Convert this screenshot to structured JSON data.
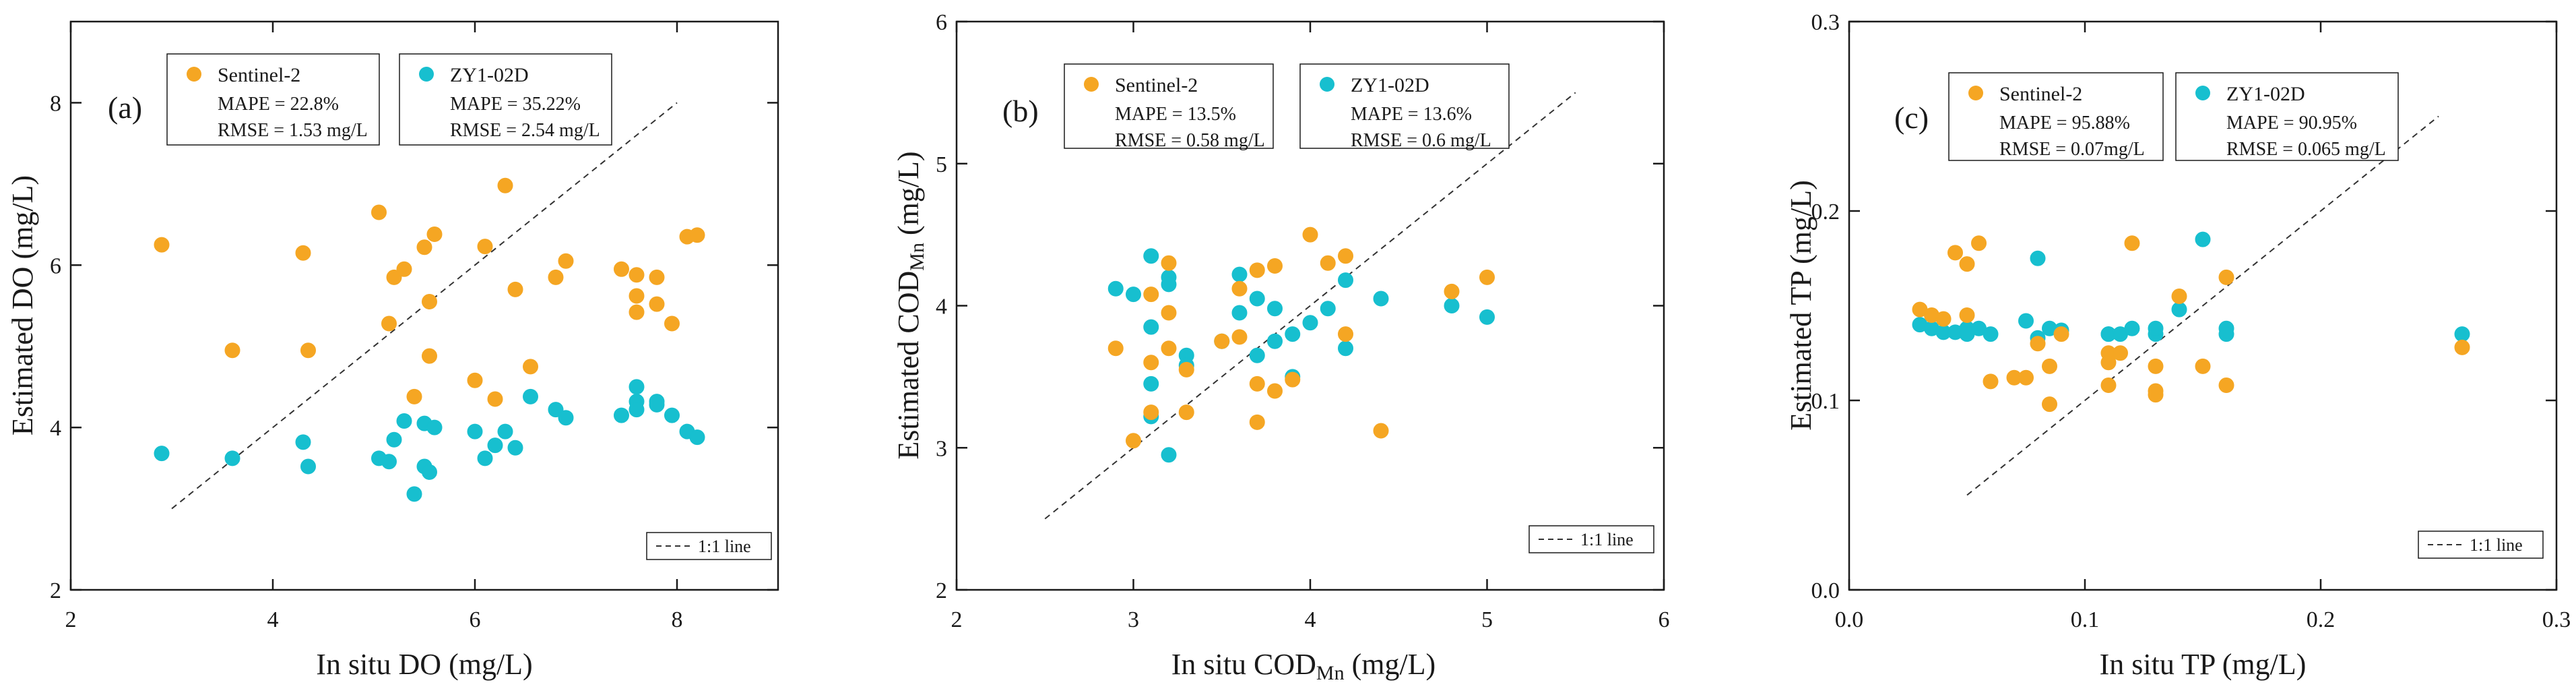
{
  "colors": {
    "sentinel": "#F5A623",
    "zy": "#17BFCF",
    "axis": "#1a1a1a",
    "line": "#333333"
  },
  "chart_data": [
    {
      "type": "scatter",
      "panel_label": "(a)",
      "xlabel": "In situ DO (mg/L)",
      "ylabel": "Estimated DO (mg/L)",
      "xlim": [
        2,
        9
      ],
      "ylim": [
        2,
        9
      ],
      "xticks": [
        2,
        4,
        6,
        8
      ],
      "yticks": [
        2,
        4,
        6,
        8
      ],
      "line_label": "1:1 line",
      "line_range": [
        3,
        8
      ],
      "series": [
        {
          "name": "Sentinel-2",
          "color_key": "sentinel",
          "stat1": "MAPE = 22.8%",
          "stat2": "RMSE = 1.53 mg/L",
          "points": [
            [
              2.9,
              6.25
            ],
            [
              3.6,
              4.95
            ],
            [
              4.3,
              6.15
            ],
            [
              4.35,
              4.95
            ],
            [
              5.05,
              6.65
            ],
            [
              5.15,
              5.28
            ],
            [
              5.2,
              5.85
            ],
            [
              5.3,
              5.95
            ],
            [
              5.4,
              4.38
            ],
            [
              5.5,
              6.22
            ],
            [
              5.55,
              5.55
            ],
            [
              5.55,
              4.88
            ],
            [
              5.6,
              6.38
            ],
            [
              6.0,
              4.58
            ],
            [
              6.1,
              6.23
            ],
            [
              6.2,
              4.35
            ],
            [
              6.3,
              6.98
            ],
            [
              6.4,
              5.7
            ],
            [
              6.55,
              4.75
            ],
            [
              6.8,
              5.85
            ],
            [
              6.9,
              6.05
            ],
            [
              7.45,
              5.95
            ],
            [
              7.6,
              5.88
            ],
            [
              7.6,
              5.62
            ],
            [
              7.6,
              5.42
            ],
            [
              7.8,
              5.85
            ],
            [
              7.8,
              5.52
            ],
            [
              7.95,
              5.28
            ],
            [
              8.1,
              6.35
            ],
            [
              8.2,
              6.37
            ]
          ]
        },
        {
          "name": "ZY1-02D",
          "color_key": "zy",
          "stat1": "MAPE = 35.22%",
          "stat2": "RMSE = 2.54 mg/L",
          "points": [
            [
              2.9,
              3.68
            ],
            [
              3.6,
              3.62
            ],
            [
              4.3,
              3.82
            ],
            [
              4.35,
              3.52
            ],
            [
              5.05,
              3.62
            ],
            [
              5.15,
              3.58
            ],
            [
              5.2,
              3.85
            ],
            [
              5.3,
              4.08
            ],
            [
              5.4,
              3.18
            ],
            [
              5.5,
              4.05
            ],
            [
              5.5,
              3.52
            ],
            [
              5.55,
              3.45
            ],
            [
              5.6,
              4.0
            ],
            [
              6.0,
              3.95
            ],
            [
              6.1,
              3.62
            ],
            [
              6.2,
              3.78
            ],
            [
              6.3,
              3.95
            ],
            [
              6.4,
              3.75
            ],
            [
              6.55,
              4.38
            ],
            [
              6.8,
              4.22
            ],
            [
              6.9,
              4.12
            ],
            [
              7.45,
              4.15
            ],
            [
              7.6,
              4.5
            ],
            [
              7.6,
              4.32
            ],
            [
              7.6,
              4.22
            ],
            [
              7.8,
              4.32
            ],
            [
              7.8,
              4.28
            ],
            [
              7.95,
              4.15
            ],
            [
              8.1,
              3.95
            ],
            [
              8.2,
              3.88
            ]
          ]
        }
      ]
    },
    {
      "type": "scatter",
      "panel_label": "(b)",
      "xlabel_main": "In situ COD",
      "xlabel_sub": "Mn",
      "xlabel_tail": " (mg/L)",
      "ylabel_main": "Estimated COD",
      "ylabel_sub": "Mn",
      "ylabel_tail": " (mg/L)",
      "xlim": [
        2,
        6
      ],
      "ylim": [
        2,
        6
      ],
      "xticks": [
        2,
        3,
        4,
        5,
        6
      ],
      "yticks": [
        2,
        3,
        4,
        5,
        6
      ],
      "line_label": "1:1 line",
      "line_range": [
        2.5,
        5.5
      ],
      "series": [
        {
          "name": "Sentinel-2",
          "color_key": "sentinel",
          "stat1": "MAPE = 13.5%",
          "stat2": "RMSE = 0.58 mg/L",
          "points": [
            [
              2.9,
              3.7
            ],
            [
              3.0,
              3.05
            ],
            [
              3.1,
              4.08
            ],
            [
              3.1,
              3.6
            ],
            [
              3.1,
              3.25
            ],
            [
              3.2,
              4.3
            ],
            [
              3.2,
              3.95
            ],
            [
              3.2,
              3.7
            ],
            [
              3.3,
              3.55
            ],
            [
              3.3,
              3.25
            ],
            [
              3.5,
              3.75
            ],
            [
              3.6,
              4.12
            ],
            [
              3.6,
              3.78
            ],
            [
              3.7,
              4.25
            ],
            [
              3.7,
              3.45
            ],
            [
              3.7,
              3.18
            ],
            [
              3.8,
              4.28
            ],
            [
              3.8,
              3.4
            ],
            [
              3.9,
              3.48
            ],
            [
              4.0,
              4.5
            ],
            [
              4.1,
              4.3
            ],
            [
              4.2,
              4.35
            ],
            [
              4.2,
              3.8
            ],
            [
              4.4,
              3.12
            ],
            [
              4.8,
              4.1
            ],
            [
              5.0,
              4.2
            ]
          ]
        },
        {
          "name": "ZY1-02D",
          "color_key": "zy",
          "stat1": "MAPE = 13.6%",
          "stat2": "RMSE = 0.6 mg/L",
          "points": [
            [
              2.9,
              4.12
            ],
            [
              3.0,
              4.08
            ],
            [
              3.1,
              4.35
            ],
            [
              3.1,
              3.45
            ],
            [
              3.1,
              3.22
            ],
            [
              3.1,
              3.85
            ],
            [
              3.2,
              4.2
            ],
            [
              3.2,
              4.15
            ],
            [
              3.2,
              2.95
            ],
            [
              3.3,
              3.65
            ],
            [
              3.3,
              3.58
            ],
            [
              3.5,
              3.75
            ],
            [
              3.6,
              4.22
            ],
            [
              3.6,
              3.95
            ],
            [
              3.7,
              4.05
            ],
            [
              3.7,
              3.65
            ],
            [
              3.8,
              3.98
            ],
            [
              3.8,
              3.75
            ],
            [
              3.9,
              3.8
            ],
            [
              3.9,
              3.5
            ],
            [
              4.0,
              3.88
            ],
            [
              4.1,
              3.98
            ],
            [
              4.2,
              4.18
            ],
            [
              4.2,
              3.7
            ],
            [
              4.4,
              4.05
            ],
            [
              4.8,
              4.0
            ],
            [
              5.0,
              3.92
            ]
          ]
        }
      ]
    },
    {
      "type": "scatter",
      "panel_label": "(c)",
      "xlabel": "In situ TP (mg/L)",
      "ylabel": "Estimated TP (mg/L)",
      "xlim": [
        0.0,
        0.3
      ],
      "ylim": [
        0.0,
        0.3
      ],
      "xticks": [
        0.0,
        0.1,
        0.2,
        0.3
      ],
      "yticks": [
        0.0,
        0.1,
        0.2,
        0.3
      ],
      "line_label": "1:1 line",
      "line_range": [
        0.05,
        0.25
      ],
      "series": [
        {
          "name": "Sentinel-2",
          "color_key": "sentinel",
          "stat1": "MAPE = 95.88%",
          "stat2": "RMSE = 0.07mg/L",
          "points": [
            [
              0.03,
              0.148
            ],
            [
              0.035,
              0.145
            ],
            [
              0.04,
              0.143
            ],
            [
              0.045,
              0.178
            ],
            [
              0.05,
              0.172
            ],
            [
              0.05,
              0.145
            ],
            [
              0.055,
              0.183
            ],
            [
              0.06,
              0.11
            ],
            [
              0.07,
              0.112
            ],
            [
              0.075,
              0.112
            ],
            [
              0.08,
              0.13
            ],
            [
              0.085,
              0.098
            ],
            [
              0.085,
              0.118
            ],
            [
              0.09,
              0.135
            ],
            [
              0.11,
              0.108
            ],
            [
              0.11,
              0.125
            ],
            [
              0.11,
              0.12
            ],
            [
              0.115,
              0.125
            ],
            [
              0.12,
              0.183
            ],
            [
              0.13,
              0.105
            ],
            [
              0.13,
              0.103
            ],
            [
              0.13,
              0.118
            ],
            [
              0.14,
              0.155
            ],
            [
              0.15,
              0.118
            ],
            [
              0.16,
              0.165
            ],
            [
              0.16,
              0.108
            ],
            [
              0.26,
              0.128
            ]
          ]
        },
        {
          "name": "ZY1-02D",
          "color_key": "zy",
          "stat1": "MAPE = 90.95%",
          "stat2": "RMSE = 0.065 mg/L",
          "points": [
            [
              0.03,
              0.14
            ],
            [
              0.035,
              0.138
            ],
            [
              0.04,
              0.136
            ],
            [
              0.045,
              0.136
            ],
            [
              0.05,
              0.138
            ],
            [
              0.05,
              0.135
            ],
            [
              0.055,
              0.138
            ],
            [
              0.06,
              0.135
            ],
            [
              0.075,
              0.142
            ],
            [
              0.08,
              0.175
            ],
            [
              0.08,
              0.133
            ],
            [
              0.085,
              0.138
            ],
            [
              0.09,
              0.137
            ],
            [
              0.11,
              0.135
            ],
            [
              0.11,
              0.135
            ],
            [
              0.115,
              0.135
            ],
            [
              0.12,
              0.138
            ],
            [
              0.13,
              0.135
            ],
            [
              0.13,
              0.138
            ],
            [
              0.14,
              0.148
            ],
            [
              0.15,
              0.185
            ],
            [
              0.16,
              0.138
            ],
            [
              0.16,
              0.135
            ],
            [
              0.26,
              0.135
            ]
          ]
        }
      ]
    }
  ]
}
